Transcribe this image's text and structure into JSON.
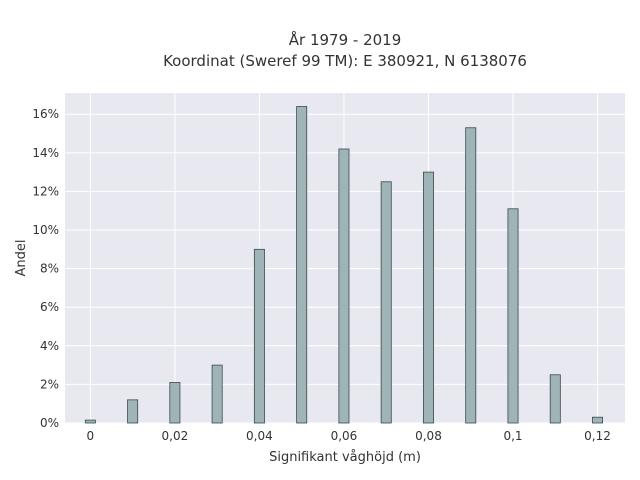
{
  "chart_data": {
    "type": "bar",
    "title_line1": "År 1979 - 2019",
    "title_line2": "Koordinat (Sweref 99 TM): E 380921, N 6138076",
    "xlabel": "Signifikant våghöjd (m)",
    "ylabel": "Andel",
    "x": [
      0,
      0.01,
      0.02,
      0.03,
      0.04,
      0.05,
      0.06,
      0.07,
      0.08,
      0.09,
      0.1,
      0.11,
      0.12
    ],
    "values": [
      0.0015,
      0.012,
      0.021,
      0.03,
      0.09,
      0.164,
      0.142,
      0.125,
      0.13,
      0.153,
      0.111,
      0.025,
      0.003
    ],
    "xlim": [
      -0.006,
      0.1265
    ],
    "ylim": [
      0,
      0.171
    ],
    "xticks": [
      0,
      0.02,
      0.04,
      0.06,
      0.08,
      0.1,
      0.12
    ],
    "xtick_labels": [
      "0",
      "0,02",
      "0,04",
      "0,06",
      "0,08",
      "0,1",
      "0,12"
    ],
    "yticks": [
      0,
      0.02,
      0.04,
      0.06,
      0.08,
      0.1,
      0.12,
      0.14,
      0.16
    ],
    "ytick_labels": [
      "0%",
      "2%",
      "4%",
      "6%",
      "8%",
      "10%",
      "12%",
      "14%",
      "16%"
    ],
    "grid": true,
    "colors": {
      "plot_bg": "#e8e8f0",
      "grid": "#ffffff",
      "bar_fill": "#9fb4b6",
      "bar_stroke": "#3a4a4c"
    }
  }
}
